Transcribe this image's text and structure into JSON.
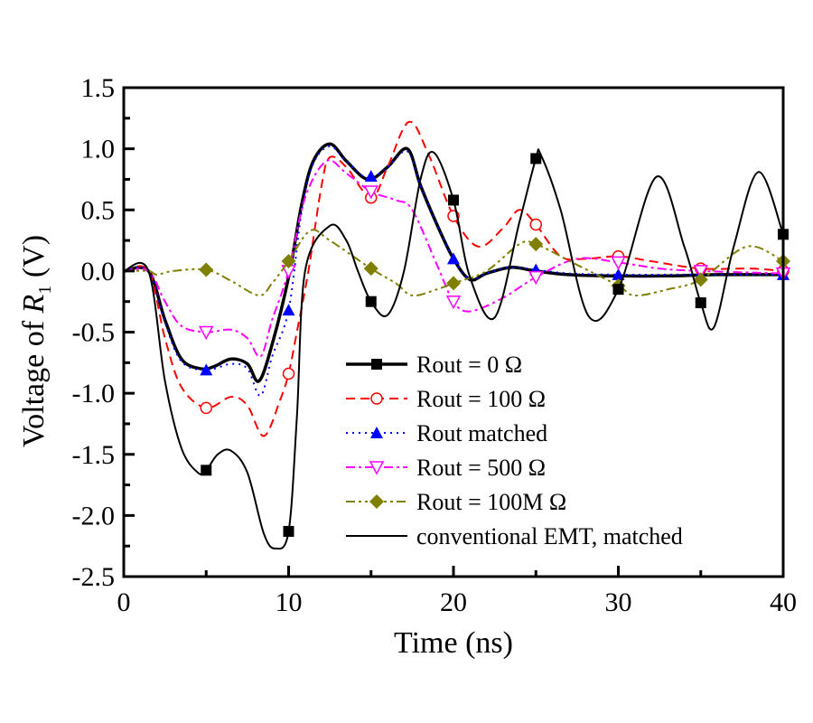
{
  "chart_data": {
    "type": "line",
    "title": "",
    "xlabel": "Time (ns)",
    "ylabel_prefix": "Voltage of ",
    "ylabel_var": "R",
    "ylabel_sub": "1",
    "ylabel_suffix": " (V)",
    "xlim": [
      0,
      40
    ],
    "ylim": [
      -2.5,
      1.5
    ],
    "xticks": [
      0,
      10,
      20,
      30,
      40
    ],
    "xtick_labels": [
      "0",
      "10",
      "20",
      "30",
      "40"
    ],
    "xminor": [
      5,
      15,
      25,
      35
    ],
    "yticks": [
      1.5,
      1.0,
      0.5,
      0.0,
      -0.5,
      -1.0,
      -1.5,
      -2.0,
      -2.5
    ],
    "ytick_labels": [
      "1.5",
      "1.0",
      "0.5",
      "0.0",
      "-0.5",
      "-1.0",
      "-1.5",
      "-2.0",
      "-2.5"
    ],
    "yminor": [
      1.25,
      0.75,
      0.25,
      -0.25,
      -0.75,
      -1.25,
      -1.75,
      -2.25
    ],
    "grid": false,
    "legend_position": "lower-center",
    "series": [
      {
        "name": "Rout = 0 Ω",
        "color": "#000000",
        "style": "thick-solid",
        "marker": "square",
        "x": [
          0,
          1.5,
          2.5,
          3.5,
          4.7,
          5.5,
          6.5,
          7.5,
          8.2,
          9,
          10,
          10.8,
          11.5,
          12.5,
          13.5,
          14.8,
          16,
          17.2,
          18,
          19,
          20,
          21,
          22,
          23.5,
          25,
          27,
          30,
          33,
          36,
          40
        ],
        "y": [
          0,
          0,
          -0.4,
          -0.72,
          -0.8,
          -0.78,
          -0.72,
          -0.76,
          -0.9,
          -0.6,
          -0.05,
          0.55,
          0.9,
          1.04,
          0.9,
          0.75,
          0.85,
          1.0,
          0.7,
          0.38,
          0.1,
          -0.07,
          -0.02,
          0.03,
          0.0,
          -0.03,
          -0.04,
          -0.04,
          -0.03,
          -0.03
        ]
      },
      {
        "name": "Rout = 100 Ω",
        "color": "#ff0000",
        "style": "dashed",
        "marker": "circle-open",
        "marker_x": [
          5,
          10,
          15,
          20,
          25,
          30,
          35,
          40
        ],
        "x": [
          0,
          1.5,
          2.5,
          3.5,
          5,
          6.5,
          7.5,
          8.5,
          9.5,
          10,
          10.5,
          11.2,
          12,
          12.5,
          13.5,
          15,
          16,
          17.3,
          18.5,
          20,
          21.5,
          23,
          24,
          25,
          26.5,
          28,
          30,
          32,
          35,
          38,
          40
        ],
        "y": [
          0,
          0,
          -0.55,
          -0.95,
          -1.12,
          -1.03,
          -1.1,
          -1.35,
          -1.05,
          -0.84,
          -0.5,
          0.0,
          0.7,
          0.93,
          0.85,
          0.6,
          0.85,
          1.22,
          0.95,
          0.45,
          0.2,
          0.35,
          0.5,
          0.38,
          0.12,
          0.1,
          0.12,
          0.08,
          0.02,
          0.02,
          0.0
        ]
      },
      {
        "name": "Rout  matched",
        "color": "#0000ff",
        "style": "dotted",
        "marker": "triangle-up",
        "marker_x": [
          5,
          10,
          15,
          20,
          25,
          30,
          35,
          40
        ],
        "x": [
          0,
          1.5,
          2.5,
          3.5,
          5,
          6.5,
          7.5,
          8.3,
          9,
          10,
          10.8,
          11.5,
          12.5,
          13.5,
          14.8,
          16,
          17.2,
          18,
          19,
          20,
          21,
          22,
          23.5,
          25,
          27,
          30,
          33,
          36,
          40
        ],
        "y": [
          0,
          0,
          -0.42,
          -0.74,
          -0.81,
          -0.76,
          -0.8,
          -1.02,
          -0.7,
          -0.32,
          0.5,
          0.88,
          1.02,
          0.9,
          0.76,
          0.85,
          0.98,
          0.7,
          0.38,
          0.1,
          -0.07,
          -0.02,
          0.03,
          0.01,
          -0.02,
          -0.03,
          -0.03,
          -0.03,
          -0.03
        ]
      },
      {
        "name": "Rout = 500 Ω",
        "color": "#ff00ff",
        "style": "dash-dot",
        "marker": "triangle-down-open",
        "marker_x": [
          5,
          10,
          15,
          20,
          25,
          30,
          35,
          40
        ],
        "x": [
          0,
          1.5,
          2.5,
          3.5,
          5,
          6.5,
          7.5,
          8.3,
          9,
          10,
          11,
          12.3,
          13.5,
          15,
          16.5,
          17.5,
          19,
          20,
          21,
          23,
          25,
          27.5,
          30,
          32.5,
          35,
          40
        ],
        "y": [
          0,
          0,
          -0.25,
          -0.45,
          -0.5,
          -0.48,
          -0.55,
          -0.7,
          -0.4,
          0.0,
          0.6,
          0.9,
          0.8,
          0.65,
          0.58,
          0.5,
          0.05,
          -0.25,
          -0.33,
          -0.22,
          -0.05,
          0.1,
          0.07,
          0.02,
          0.0,
          -0.02
        ]
      },
      {
        "name": "Rout = 100M Ω",
        "color": "#808000",
        "style": "dash-dot-dot",
        "marker": "diamond",
        "marker_x": [
          5,
          10,
          15,
          20,
          25,
          30,
          35,
          40
        ],
        "x": [
          0,
          1.5,
          2,
          3,
          5,
          6.5,
          8.2,
          9,
          10,
          11.3,
          12.5,
          15,
          16.5,
          17.5,
          19,
          20,
          22,
          24,
          25,
          27.5,
          30,
          31,
          33,
          35,
          37.8,
          40
        ],
        "y": [
          0,
          0,
          -0.03,
          0.0,
          0.01,
          -0.08,
          -0.2,
          -0.1,
          0.08,
          0.33,
          0.25,
          0.02,
          -0.1,
          -0.2,
          -0.15,
          -0.1,
          0.0,
          0.22,
          0.22,
          0.05,
          -0.12,
          -0.2,
          -0.15,
          -0.07,
          0.2,
          0.08
        ]
      },
      {
        "name": "conventional EMT, matched",
        "color": "#000000",
        "style": "solid",
        "marker": "none",
        "marker_square_x": [
          5,
          10,
          15,
          20,
          25,
          30,
          35,
          40
        ],
        "x": [
          0,
          1.5,
          2.5,
          3.5,
          4.5,
          5,
          5.7,
          6.5,
          7.5,
          8.5,
          9.2,
          10,
          10.5,
          11,
          12.5,
          13.5,
          14.2,
          15,
          16,
          17,
          18,
          18.8,
          20,
          21,
          22.5,
          24,
          25,
          25.3,
          26.5,
          28.2,
          30,
          32.3,
          34,
          35,
          35.8,
          37,
          38.5,
          40
        ],
        "y": [
          0,
          0,
          -0.9,
          -1.45,
          -1.65,
          -1.63,
          -1.5,
          -1.47,
          -1.65,
          -2.15,
          -2.27,
          -2.13,
          -1.2,
          0.0,
          0.37,
          0.25,
          0.0,
          -0.25,
          -0.36,
          0.0,
          0.75,
          0.97,
          0.58,
          -0.05,
          -0.38,
          0.4,
          0.92,
          0.95,
          0.5,
          -0.37,
          -0.15,
          0.77,
          0.2,
          -0.26,
          -0.46,
          0.2,
          0.81,
          0.3
        ]
      }
    ]
  }
}
